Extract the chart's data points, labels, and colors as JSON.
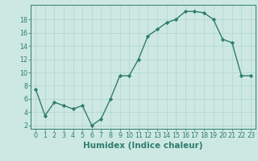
{
  "x": [
    0,
    1,
    2,
    3,
    4,
    5,
    6,
    7,
    8,
    9,
    10,
    11,
    12,
    13,
    14,
    15,
    16,
    17,
    18,
    19,
    20,
    21,
    22,
    23
  ],
  "y": [
    7.5,
    3.5,
    5.5,
    5.0,
    4.5,
    5.0,
    2.0,
    3.0,
    6.0,
    9.5,
    9.5,
    12.0,
    15.5,
    16.5,
    17.5,
    18.0,
    19.2,
    19.2,
    19.0,
    18.0,
    15.0,
    14.5,
    9.5,
    9.5
  ],
  "line_color": "#2e7d6e",
  "marker": "D",
  "marker_size": 2.2,
  "bg_color": "#cde8e2",
  "grid_color": "#b0d4cc",
  "title": "",
  "xlabel": "Humidex (Indice chaleur)",
  "ylabel": "",
  "xlim": [
    -0.5,
    23.5
  ],
  "ylim": [
    1.5,
    20.2
  ],
  "yticks": [
    2,
    4,
    6,
    8,
    10,
    12,
    14,
    16,
    18
  ],
  "xticks": [
    0,
    1,
    2,
    3,
    4,
    5,
    6,
    7,
    8,
    9,
    10,
    11,
    12,
    13,
    14,
    15,
    16,
    17,
    18,
    19,
    20,
    21,
    22,
    23
  ],
  "tick_label_fontsize": 5.8,
  "xlabel_fontsize": 7.5,
  "line_width": 1.0
}
